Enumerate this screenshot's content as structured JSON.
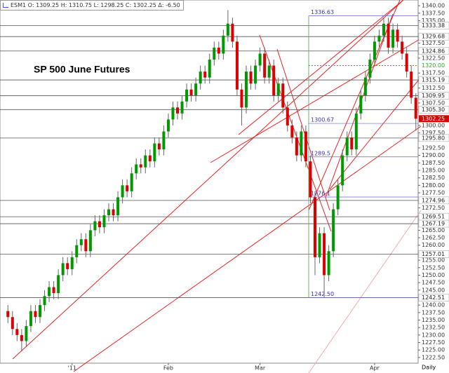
{
  "legend_text": "ESM1 O: 1309.25 H: 1310.75 L: 1298.25 C: 1302.25 Δ: -6.50",
  "chart_data": {
    "type": "candlestick",
    "title": "SP 500 June Futures",
    "up_color": "#009900",
    "down_color": "#dd0000",
    "categories": [
      null,
      null,
      null,
      null,
      null,
      null,
      null,
      null,
      null,
      null,
      null,
      null,
      null,
      null,
      "'11",
      null,
      null,
      null,
      null,
      null,
      null,
      null,
      null,
      null,
      null,
      null,
      null,
      null,
      null,
      null,
      null,
      null,
      null,
      null,
      null,
      "Feb",
      null,
      null,
      null,
      null,
      null,
      null,
      null,
      null,
      null,
      null,
      null,
      null,
      null,
      null,
      null,
      null,
      null,
      null,
      null,
      "Mar",
      null,
      null,
      null,
      null,
      null,
      null,
      null,
      null,
      null,
      null,
      null,
      null,
      null,
      null,
      null,
      null,
      null,
      null,
      null,
      null,
      null,
      null,
      null,
      null,
      "Apr",
      null,
      null,
      null,
      null,
      null,
      null,
      null,
      null,
      null
    ],
    "open": [
      1238,
      1236,
      1232,
      1230,
      1228,
      1233,
      1238,
      1236,
      1240,
      1243,
      1246,
      1244,
      1250,
      1254,
      1252,
      1256,
      1260,
      1262,
      1258,
      1265,
      1268,
      1266,
      1270,
      1272,
      1270,
      1276,
      1280,
      1278,
      1284,
      1287,
      1286,
      1290,
      1288,
      1294,
      1292,
      1298,
      1302,
      1306,
      1304,
      1308,
      1312,
      1310,
      1314,
      1318,
      1316,
      1322,
      1326,
      1324,
      1330,
      1334,
      1328,
      1312,
      1306,
      1318,
      1314,
      1320,
      1324,
      1316,
      1320,
      1310,
      1314,
      1306,
      1300,
      1296,
      1290,
      1298,
      1288,
      1276,
      1256,
      1264,
      1250,
      1258,
      1272,
      1280,
      1290,
      1296,
      1292,
      1304,
      1310,
      1316,
      1322,
      1328,
      1330,
      1334,
      1326,
      1332,
      1328,
      1324,
      1318,
      1309.25
    ],
    "high": [
      1240,
      1238,
      1234,
      1232,
      1235,
      1240,
      1240,
      1242,
      1245,
      1248,
      1248,
      1252,
      1256,
      1256,
      1258,
      1262,
      1264,
      1264,
      1267,
      1270,
      1270,
      1272,
      1274,
      1274,
      1278,
      1282,
      1282,
      1286,
      1289,
      1289,
      1292,
      1292,
      1296,
      1296,
      1300,
      1304,
      1308,
      1308,
      1310,
      1314,
      1314,
      1316,
      1320,
      1320,
      1324,
      1328,
      1328,
      1332,
      1338.5,
      1336,
      1330,
      1314,
      1320,
      1320,
      1322,
      1326,
      1326,
      1322,
      1322,
      1316,
      1316,
      1308,
      1302,
      1298,
      1300,
      1300,
      1290,
      1278,
      1266,
      1266,
      1260,
      1274,
      1282,
      1292,
      1298,
      1298,
      1306,
      1312,
      1318,
      1324,
      1330,
      1332,
      1336,
      1336,
      1334,
      1334,
      1330,
      1326,
      1320,
      1310.75
    ],
    "low": [
      1234,
      1230,
      1228,
      1224.5,
      1226,
      1231,
      1234,
      1234,
      1238,
      1241,
      1242,
      1242,
      1248,
      1250,
      1250,
      1254,
      1258,
      1256,
      1256,
      1263,
      1264,
      1264,
      1268,
      1268,
      1268,
      1274,
      1276,
      1276,
      1282,
      1284,
      1284,
      1286,
      1286,
      1290,
      1290,
      1296,
      1300,
      1302,
      1302,
      1306,
      1308,
      1308,
      1312,
      1314,
      1314,
      1320,
      1322,
      1322,
      1328,
      1326,
      1310,
      1300,
      1304,
      1312,
      1312,
      1318,
      1314,
      1314,
      1308,
      1308,
      1304,
      1298,
      1294,
      1288,
      1288,
      1286,
      1274,
      1250,
      1254,
      1242.5,
      1248,
      1256,
      1270,
      1278,
      1288,
      1290,
      1290,
      1302,
      1308,
      1314,
      1320,
      1326,
      1328,
      1324,
      1324,
      1326,
      1322,
      1316,
      1307.25,
      1298.25
    ],
    "close": [
      1236,
      1232,
      1230,
      1228,
      1233,
      1238,
      1236,
      1240,
      1243,
      1246,
      1244,
      1250,
      1254,
      1252,
      1256,
      1260,
      1262,
      1258,
      1265,
      1268,
      1266,
      1270,
      1272,
      1270,
      1276,
      1280,
      1278,
      1284,
      1287,
      1286,
      1290,
      1288,
      1294,
      1292,
      1298,
      1302,
      1306,
      1304,
      1308,
      1312,
      1310,
      1314,
      1318,
      1316,
      1322,
      1326,
      1324,
      1330,
      1334,
      1328,
      1312,
      1306,
      1318,
      1314,
      1320,
      1324,
      1316,
      1320,
      1310,
      1314,
      1306,
      1300,
      1296,
      1290,
      1298,
      1288,
      1276,
      1256,
      1264,
      1250,
      1258,
      1272,
      1280,
      1290,
      1296,
      1292,
      1304,
      1310,
      1316,
      1322,
      1328,
      1330,
      1334,
      1326,
      1332,
      1328,
      1324,
      1318,
      1309.25,
      1302.25
    ],
    "ylim": [
      1220.6,
      1341.9
    ],
    "yticks": [
      {
        "value": 1340,
        "label": "1340.00"
      },
      {
        "value": 1337.5,
        "label": "1337.50"
      },
      {
        "value": 1335,
        "label": "1335.00"
      },
      {
        "value": 1327.5,
        "label": "1327.50"
      },
      {
        "value": 1322.5,
        "label": "1322.50"
      },
      {
        "value": 1317.5,
        "label": "1317.50"
      },
      {
        "value": 1312.5,
        "label": "1312.50"
      },
      {
        "value": 1307.5,
        "label": "1307.50"
      },
      {
        "value": 1300,
        "label": "1300.00"
      },
      {
        "value": 1297.5,
        "label": "1297.50"
      },
      {
        "value": 1292.5,
        "label": "1292.50"
      },
      {
        "value": 1290,
        "label": "1290.00"
      },
      {
        "value": 1287.5,
        "label": "1287.50"
      },
      {
        "value": 1285,
        "label": "1285.00"
      },
      {
        "value": 1282.5,
        "label": "1282.50"
      },
      {
        "value": 1280,
        "label": "1280.00"
      },
      {
        "value": 1277.5,
        "label": "1277.50"
      },
      {
        "value": 1272.5,
        "label": "1272.50"
      },
      {
        "value": 1265,
        "label": "1265.00"
      },
      {
        "value": 1262.5,
        "label": "1262.50"
      },
      {
        "value": 1260,
        "label": "1260.00"
      },
      {
        "value": 1255,
        "label": "1255.00"
      },
      {
        "value": 1252.5,
        "label": "1252.50"
      },
      {
        "value": 1250,
        "label": "1250.00"
      },
      {
        "value": 1247.5,
        "label": "1247.50"
      },
      {
        "value": 1245,
        "label": "1245.00"
      },
      {
        "value": 1240,
        "label": "1240.00"
      },
      {
        "value": 1237.5,
        "label": "1237.50"
      },
      {
        "value": 1235,
        "label": "1235.00"
      },
      {
        "value": 1232.5,
        "label": "1232.50"
      },
      {
        "value": 1230,
        "label": "1230.00"
      },
      {
        "value": 1227.5,
        "label": "1227.50"
      },
      {
        "value": 1225,
        "label": "1225.00"
      },
      {
        "value": 1222.5,
        "label": "1222.50"
      }
    ],
    "levels": [
      1333.38,
      1329.68,
      1324.86,
      1315.19,
      1309.95,
      {
        "value": 1305.3,
        "label": "1305.30"
      },
      {
        "value": 1295.8,
        "label": "1295.80"
      },
      1274.96,
      1269.51,
      1267.19,
      1257.01,
      1242.51
    ],
    "highlight_level": {
      "value": 1320,
      "label": "1320.00"
    },
    "fib_levels": [
      1336.63,
      1300.67,
      1289.5,
      1276.1,
      {
        "value": 1242.5,
        "label": "1242.50"
      }
    ],
    "x_end_label": "Daily"
  }
}
